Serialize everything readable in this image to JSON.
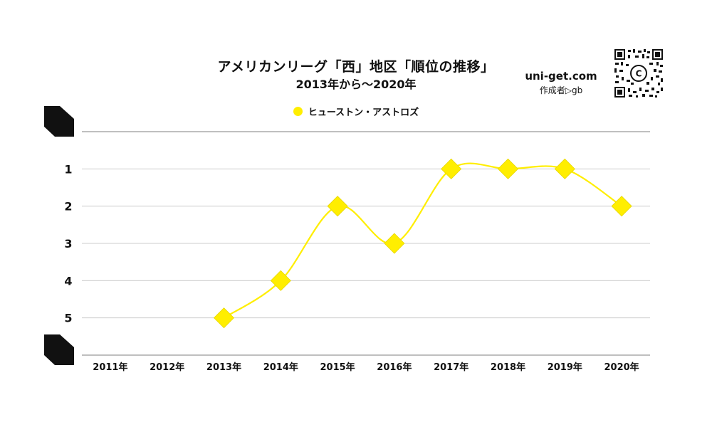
{
  "title": "アメリカンリーグ「西」地区「順位の推移」",
  "subtitle": "2013年から～2020年",
  "site": {
    "url": "uni-get.com",
    "author": "作成者▷gb"
  },
  "qr": {
    "icon": "qr-code-icon",
    "badge": "C"
  },
  "colors": {
    "series": "#ffee00",
    "marker_stroke": "#e8d800",
    "grid": "#cccccc",
    "axis_line": "#999999",
    "text": "#111111"
  },
  "chart_data": {
    "type": "line",
    "x": [
      "2011年",
      "2012年",
      "2013年",
      "2014年",
      "2015年",
      "2016年",
      "2017年",
      "2018年",
      "2019年",
      "2020年"
    ],
    "series": [
      {
        "name": "ヒューストン・アストロズ",
        "values": [
          null,
          null,
          5,
          4,
          2,
          3,
          1,
          1,
          1,
          2
        ]
      }
    ],
    "y_ticks": [
      "",
      "1",
      "2",
      "3",
      "4",
      "5",
      ""
    ],
    "ylim": [
      0,
      6
    ],
    "y_reversed": true,
    "smooth": true,
    "marker": "diamond",
    "grid": true,
    "legend_position": "top"
  }
}
